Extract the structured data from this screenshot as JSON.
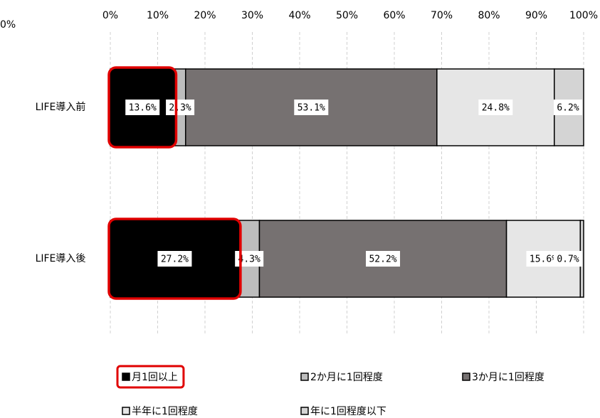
{
  "chart_data": {
    "type": "stacked_bar_horizontal",
    "annotation": "0%",
    "categories": [
      "LIFE導入前",
      "LIFE導入後"
    ],
    "series": [
      {
        "name": "月1回以上",
        "color": "#000000",
        "values": [
          13.6,
          27.2
        ],
        "value_labels": [
          "13.6%",
          "27.2%"
        ]
      },
      {
        "name": "2か月に1回程度",
        "color": "#bdbdbd",
        "values": [
          2.3,
          4.3
        ],
        "value_labels": [
          "2.3%",
          "4.3%"
        ]
      },
      {
        "name": "3か月に1回程度",
        "color": "#767171",
        "values": [
          53.1,
          52.2
        ],
        "value_labels": [
          "53.1%",
          "52.2%"
        ]
      },
      {
        "name": "半年に1回程度",
        "color": "#e6e6e6",
        "values": [
          24.8,
          15.6
        ],
        "value_labels": [
          "24.8%",
          "15.6%"
        ]
      },
      {
        "name": "年に1回程度以下",
        "color": "#d4d4d4",
        "values": [
          6.2,
          0.7
        ],
        "value_labels": [
          "6.2%",
          "0.7%"
        ]
      }
    ],
    "xlim": [
      0,
      100
    ],
    "xticks": [
      {
        "value": 0,
        "label": "0%"
      },
      {
        "value": 10,
        "label": "10%"
      },
      {
        "value": 20,
        "label": "20%"
      },
      {
        "value": 30,
        "label": "30%"
      },
      {
        "value": 40,
        "label": "40%"
      },
      {
        "value": 50,
        "label": "50%"
      },
      {
        "value": 60,
        "label": "60%"
      },
      {
        "value": 70,
        "label": "70%"
      },
      {
        "value": 80,
        "label": "80%"
      },
      {
        "value": 90,
        "label": "90%"
      },
      {
        "value": 100,
        "label": "100%"
      }
    ],
    "grid": true
  }
}
